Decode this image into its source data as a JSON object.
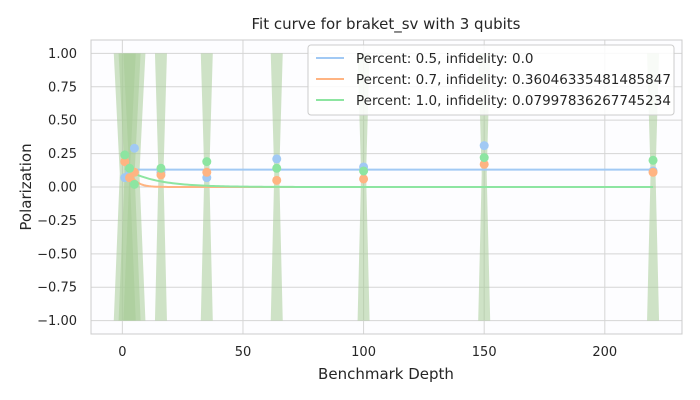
{
  "chart_data": {
    "type": "scatter",
    "title": "Fit curve for braket_sv with 3 qubits",
    "xlabel": "Benchmark Depth",
    "ylabel": "Polarization",
    "xlim": [
      -13,
      232
    ],
    "ylim": [
      -1.1,
      1.1
    ],
    "x_ticks": [
      0,
      50,
      100,
      150,
      200
    ],
    "y_ticks": [
      -1.0,
      -0.75,
      -0.5,
      -0.25,
      0.0,
      0.25,
      0.5,
      0.75,
      1.0
    ],
    "x_tick_labels": [
      "0",
      "50",
      "100",
      "150",
      "200"
    ],
    "y_tick_labels": [
      "−1.00",
      "−0.75",
      "−0.50",
      "−0.25",
      "0.00",
      "0.25",
      "0.50",
      "0.75",
      "1.00"
    ],
    "grid": true,
    "legend_position": "top-right",
    "depths": [
      1,
      3,
      5,
      16,
      35,
      64,
      100,
      150,
      220
    ],
    "series": [
      {
        "name": "Percent: 0.5, infidelity: 0.0",
        "color": "#a1c9f4",
        "fit": {
          "asymptote": 0.13,
          "amplitude": 0.0,
          "rate": 0.0
        },
        "points": [
          {
            "x": 1,
            "y": 0.07
          },
          {
            "x": 3,
            "y": 0.1
          },
          {
            "x": 5,
            "y": 0.29
          },
          {
            "x": 16,
            "y": 0.11
          },
          {
            "x": 35,
            "y": 0.07
          },
          {
            "x": 64,
            "y": 0.21
          },
          {
            "x": 100,
            "y": 0.15
          },
          {
            "x": 150,
            "y": 0.31
          },
          {
            "x": 220,
            "y": 0.12
          }
        ]
      },
      {
        "name": "Percent: 0.7, infidelity: 0.36046335481485847",
        "color": "#ffb482",
        "fit": {
          "asymptote": 0.0,
          "amplitude": 0.33,
          "rate": 0.36
        },
        "points": [
          {
            "x": 1,
            "y": 0.19
          },
          {
            "x": 3,
            "y": 0.07
          },
          {
            "x": 5,
            "y": 0.11
          },
          {
            "x": 16,
            "y": 0.09
          },
          {
            "x": 35,
            "y": 0.11
          },
          {
            "x": 64,
            "y": 0.05
          },
          {
            "x": 100,
            "y": 0.06
          },
          {
            "x": 150,
            "y": 0.17
          },
          {
            "x": 220,
            "y": 0.11
          }
        ]
      },
      {
        "name": "Percent: 1.0, infidelity: 0.07997836267745234",
        "color": "#8de5a1",
        "fit": {
          "asymptote": 0.0,
          "amplitude": 0.15,
          "rate": 0.08
        },
        "points": [
          {
            "x": 1,
            "y": 0.24
          },
          {
            "x": 3,
            "y": 0.14
          },
          {
            "x": 5,
            "y": 0.02
          },
          {
            "x": 16,
            "y": 0.14
          },
          {
            "x": 35,
            "y": 0.19
          },
          {
            "x": 64,
            "y": 0.14
          },
          {
            "x": 100,
            "y": 0.12
          },
          {
            "x": 150,
            "y": 0.22
          },
          {
            "x": 220,
            "y": 0.2
          }
        ]
      }
    ]
  }
}
